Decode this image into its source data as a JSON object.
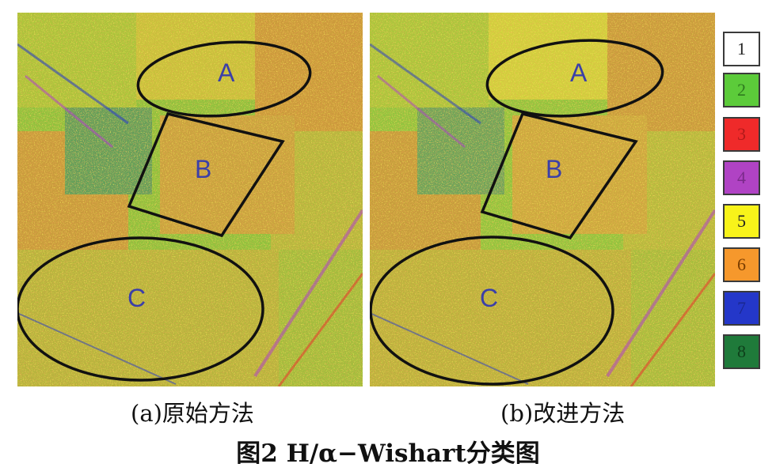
{
  "panels": [
    {
      "id": "a",
      "caption": "(a)原始方法"
    },
    {
      "id": "b",
      "caption": "(b)改进方法"
    }
  ],
  "regions": {
    "a": "A",
    "b": "B",
    "c": "C"
  },
  "figure_title": "图2  H/α−Wishart分类图",
  "legend": [
    {
      "label": "1",
      "color": "#ffffff",
      "text_color": "#222222"
    },
    {
      "label": "2",
      "color": "#5ccb3a",
      "text_color": "#2f7a1f"
    },
    {
      "label": "3",
      "color": "#ef2a2a",
      "text_color": "#b01a1a"
    },
    {
      "label": "4",
      "color": "#b043c4",
      "text_color": "#7a2a8a"
    },
    {
      "label": "5",
      "color": "#f8f31a",
      "text_color": "#222222"
    },
    {
      "label": "6",
      "color": "#f6982c",
      "text_color": "#7a3d00"
    },
    {
      "label": "7",
      "color": "#2437c9",
      "text_color": "#1a2890"
    },
    {
      "label": "8",
      "color": "#1f7a3a",
      "text_color": "#0e3f1a"
    }
  ]
}
